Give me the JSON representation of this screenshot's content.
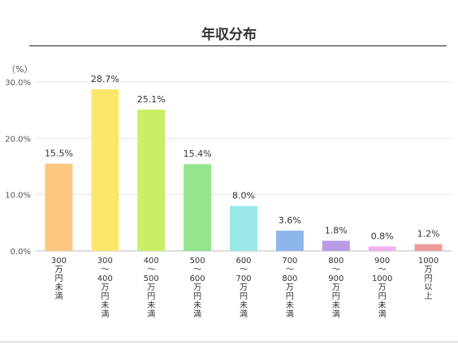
{
  "chart_data": {
    "type": "bar",
    "title": "年収分布",
    "ylabel": "（%）",
    "ylim": [
      0,
      30
    ],
    "yticks": [
      "0.0%",
      "10.0%",
      "20.0%",
      "30.0%"
    ],
    "ytick_values": [
      0,
      10,
      20,
      30
    ],
    "grid": true,
    "categories": [
      "300万円未満",
      "300〜400万円未満",
      "400〜500万円未満",
      "500〜600万円未満",
      "600〜700万円未満",
      "700〜800万円未満",
      "800〜900万円未満",
      "900〜1000万円未満",
      "1000万円以上"
    ],
    "values": [
      15.5,
      28.7,
      25.1,
      15.4,
      8.0,
      3.6,
      1.8,
      0.8,
      1.2
    ],
    "data_labels": [
      "15.5%",
      "28.7%",
      "25.1%",
      "15.4%",
      "8.0%",
      "3.6%",
      "1.8%",
      "0.8%",
      "1.2%"
    ],
    "colors": [
      "#fdc77f",
      "#fde76b",
      "#c9ef66",
      "#93e68d",
      "#9ae8ea",
      "#8eb5ec",
      "#b89be5",
      "#efb2ef",
      "#ee9a9a"
    ]
  }
}
